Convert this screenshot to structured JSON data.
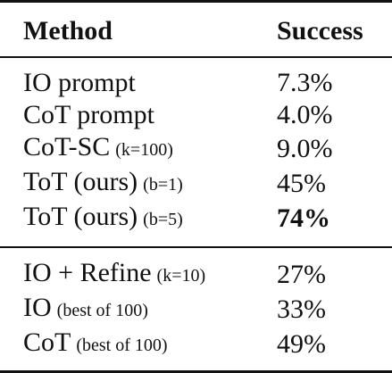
{
  "table": {
    "headers": {
      "method": "Method",
      "success": "Success"
    },
    "group1": [
      {
        "method": "IO prompt",
        "param": "",
        "success": "7.3%",
        "bold": false
      },
      {
        "method": "CoT prompt",
        "param": "",
        "success": "4.0%",
        "bold": false
      },
      {
        "method": "CoT-SC",
        "param": "(k=100)",
        "success": "9.0%",
        "bold": false
      },
      {
        "method": "ToT (ours)",
        "param": "(b=1)",
        "success": "45%",
        "bold": false
      },
      {
        "method": "ToT (ours)",
        "param": "(b=5)",
        "success": "74%",
        "bold": true
      }
    ],
    "group2": [
      {
        "method": "IO + Refine",
        "param": "(k=10)",
        "success": "27%",
        "bold": false
      },
      {
        "method": "IO",
        "param": "(best of 100)",
        "success": "33%",
        "bold": false
      },
      {
        "method": "CoT",
        "param": "(best of 100)",
        "success": "49%",
        "bold": false
      }
    ]
  }
}
